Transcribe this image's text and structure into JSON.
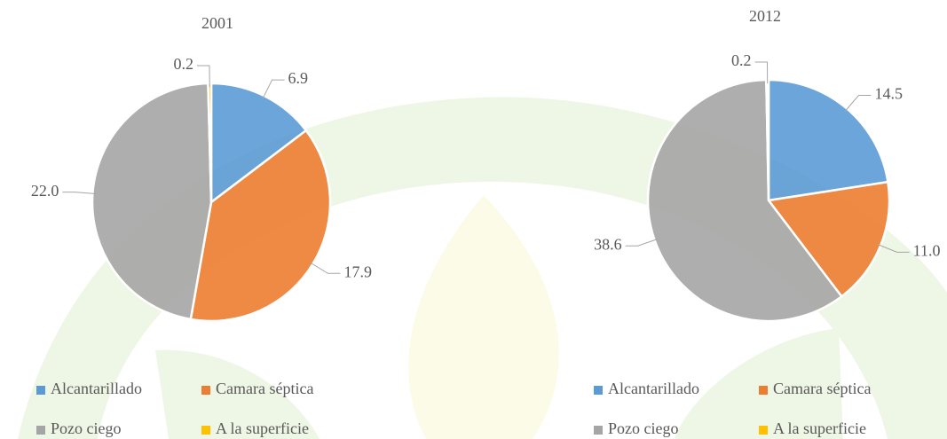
{
  "chart_data": [
    {
      "type": "pie",
      "title": "2001",
      "categories": [
        "Alcantarillado",
        "Camara séptica",
        "Pozo ciego",
        "A la superficie"
      ],
      "values": [
        6.9,
        17.9,
        22,
        0.2
      ],
      "value_labels": [
        "6.9",
        "17.9",
        "22.0",
        "0.2"
      ],
      "colors": [
        "#5b9bd5",
        "#ed7d31",
        "#a5a5a5",
        "#ffc000"
      ]
    },
    {
      "type": "pie",
      "title": "2012",
      "categories": [
        "Alcantarillado",
        "Camara séptica",
        "Pozo ciego",
        "A la superficie"
      ],
      "values": [
        14.5,
        11,
        38.6,
        0.2
      ],
      "value_labels": [
        "14.5",
        "11.0",
        "38.6",
        "0.2"
      ],
      "colors": [
        "#5b9bd5",
        "#ed7d31",
        "#a5a5a5",
        "#ffc000"
      ]
    }
  ]
}
